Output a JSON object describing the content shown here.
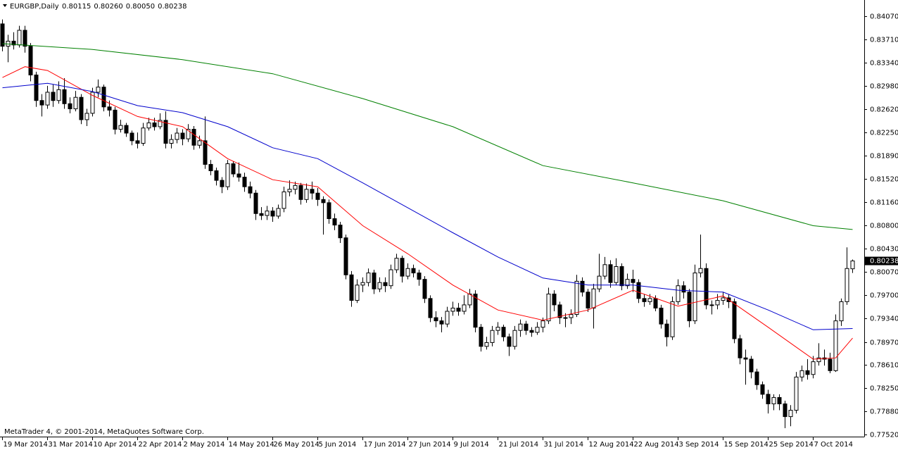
{
  "chart_data": {
    "type": "candlestick",
    "symbol": "EURGBP,Daily",
    "header_values": [
      "0.80115",
      "0.80260",
      "0.80050",
      "0.80238"
    ],
    "price_label": "0.80238",
    "footer": "MetaTrader 4, © 2001-2014, MetaQuotes Software Corp.",
    "bull_color": "#ffffff",
    "bear_color": "#000000",
    "outline_color": "#000000",
    "ylim": [
      0.77487,
      0.84291
    ],
    "yticks": [
      {
        "value": 0.8407,
        "label": "0.84070"
      },
      {
        "value": 0.8371,
        "label": "0.83710"
      },
      {
        "value": 0.8334,
        "label": "0.83340"
      },
      {
        "value": 0.8298,
        "label": "0.82980"
      },
      {
        "value": 0.8262,
        "label": "0.82620"
      },
      {
        "value": 0.8225,
        "label": "0.82250"
      },
      {
        "value": 0.8189,
        "label": "0.81890"
      },
      {
        "value": 0.8152,
        "label": "0.81520"
      },
      {
        "value": 0.8116,
        "label": "0.81160"
      },
      {
        "value": 0.808,
        "label": "0.80800"
      },
      {
        "value": 0.8043,
        "label": "0.80430"
      },
      {
        "value": 0.8007,
        "label": "0.80070"
      },
      {
        "value": 0.797,
        "label": "0.79700"
      },
      {
        "value": 0.7934,
        "label": "0.79340"
      },
      {
        "value": 0.7897,
        "label": "0.78970"
      },
      {
        "value": 0.7861,
        "label": "0.78610"
      },
      {
        "value": 0.7825,
        "label": "0.78250"
      },
      {
        "value": 0.7788,
        "label": "0.77880"
      },
      {
        "value": 0.7752,
        "label": "0.77520"
      }
    ],
    "categories": [
      "19 Mar 2014",
      null,
      null,
      null,
      null,
      null,
      null,
      null,
      "31 Mar 2014",
      null,
      null,
      null,
      null,
      null,
      null,
      null,
      "10 Apr 2014",
      null,
      null,
      null,
      null,
      null,
      null,
      null,
      "22 Apr 2014",
      null,
      null,
      null,
      null,
      null,
      null,
      null,
      "2 May 2014",
      null,
      null,
      null,
      null,
      null,
      null,
      null,
      "14 May 2014",
      null,
      null,
      null,
      null,
      null,
      null,
      null,
      "26 May 2014",
      null,
      null,
      null,
      null,
      null,
      null,
      null,
      "5 Jun 2014",
      null,
      null,
      null,
      null,
      null,
      null,
      null,
      "17 Jun 2014",
      null,
      null,
      null,
      null,
      null,
      null,
      null,
      "27 Jun 2014",
      null,
      null,
      null,
      null,
      null,
      null,
      null,
      "9 Jul 2014",
      null,
      null,
      null,
      null,
      null,
      null,
      null,
      "21 Jul 2014",
      null,
      null,
      null,
      null,
      null,
      null,
      null,
      "31 Jul 2014",
      null,
      null,
      null,
      null,
      null,
      null,
      null,
      "12 Aug 2014",
      null,
      null,
      null,
      null,
      null,
      null,
      null,
      "22 Aug 2014",
      null,
      null,
      null,
      null,
      null,
      null,
      null,
      "3 Sep 2014",
      null,
      null,
      null,
      null,
      null,
      null,
      null,
      "15 Sep 2014",
      null,
      null,
      null,
      null,
      null,
      null,
      null,
      "25 Sep 2014",
      null,
      null,
      null,
      null,
      null,
      null,
      null,
      "7 Oct 2014",
      null,
      null,
      null,
      null,
      null,
      null,
      null
    ],
    "ohlc": [
      [
        0.8395,
        0.8402,
        0.8352,
        0.836
      ],
      [
        0.836,
        0.8378,
        0.8335,
        0.8368
      ],
      [
        0.8368,
        0.8382,
        0.8355,
        0.8362
      ],
      [
        0.8362,
        0.8392,
        0.8358,
        0.8385
      ],
      [
        0.8385,
        0.8392,
        0.835,
        0.836
      ],
      [
        0.836,
        0.8365,
        0.8305,
        0.8315
      ],
      [
        0.8315,
        0.832,
        0.8265,
        0.8275
      ],
      [
        0.8275,
        0.8285,
        0.825,
        0.8268
      ],
      [
        0.8268,
        0.8298,
        0.8262,
        0.8288
      ],
      [
        0.8288,
        0.83,
        0.8265,
        0.8275
      ],
      [
        0.8275,
        0.8305,
        0.827,
        0.8292
      ],
      [
        0.8292,
        0.831,
        0.8262,
        0.827
      ],
      [
        0.827,
        0.828,
        0.8255,
        0.8262
      ],
      [
        0.8262,
        0.829,
        0.8258,
        0.828
      ],
      [
        0.828,
        0.8285,
        0.8238,
        0.8245
      ],
      [
        0.8245,
        0.8262,
        0.8235,
        0.8255
      ],
      [
        0.8255,
        0.8295,
        0.825,
        0.8288
      ],
      [
        0.8288,
        0.8308,
        0.828,
        0.8296
      ],
      [
        0.8296,
        0.83,
        0.8258,
        0.8265
      ],
      [
        0.8265,
        0.8275,
        0.825,
        0.826
      ],
      [
        0.826,
        0.8265,
        0.8222,
        0.823
      ],
      [
        0.823,
        0.8245,
        0.8225,
        0.8236
      ],
      [
        0.8236,
        0.824,
        0.8218,
        0.8224
      ],
      [
        0.8224,
        0.8228,
        0.8205,
        0.8212
      ],
      [
        0.8212,
        0.8225,
        0.82,
        0.8208
      ],
      [
        0.8208,
        0.824,
        0.8204,
        0.8232
      ],
      [
        0.8232,
        0.8248,
        0.8228,
        0.824
      ],
      [
        0.824,
        0.8248,
        0.8228,
        0.8234
      ],
      [
        0.8234,
        0.8255,
        0.823,
        0.8244
      ],
      [
        0.8244,
        0.8258,
        0.82,
        0.8208
      ],
      [
        0.8208,
        0.8222,
        0.82,
        0.8214
      ],
      [
        0.8214,
        0.8232,
        0.8208,
        0.8224
      ],
      [
        0.8224,
        0.823,
        0.8205,
        0.8215
      ],
      [
        0.8215,
        0.8238,
        0.821,
        0.823
      ],
      [
        0.823,
        0.8235,
        0.8198,
        0.8205
      ],
      [
        0.8205,
        0.822,
        0.82,
        0.8212
      ],
      [
        0.8212,
        0.825,
        0.8168,
        0.8175
      ],
      [
        0.8175,
        0.8182,
        0.8158,
        0.8165
      ],
      [
        0.8165,
        0.817,
        0.8142,
        0.815
      ],
      [
        0.815,
        0.8155,
        0.813,
        0.814
      ],
      [
        0.814,
        0.8182,
        0.8135,
        0.8176
      ],
      [
        0.8176,
        0.818,
        0.8155,
        0.816
      ],
      [
        0.816,
        0.8178,
        0.8148,
        0.8155
      ],
      [
        0.8155,
        0.8162,
        0.8132,
        0.814
      ],
      [
        0.814,
        0.8148,
        0.8122,
        0.813
      ],
      [
        0.813,
        0.8135,
        0.8088,
        0.8098
      ],
      [
        0.8098,
        0.8108,
        0.8088,
        0.8095
      ],
      [
        0.8095,
        0.811,
        0.8088,
        0.8102
      ],
      [
        0.8102,
        0.8108,
        0.8085,
        0.8094
      ],
      [
        0.8094,
        0.8112,
        0.809,
        0.8106
      ],
      [
        0.8106,
        0.814,
        0.81,
        0.8132
      ],
      [
        0.8132,
        0.815,
        0.8125,
        0.8136
      ],
      [
        0.8136,
        0.8148,
        0.8128,
        0.8142
      ],
      [
        0.8142,
        0.8146,
        0.8112,
        0.812
      ],
      [
        0.812,
        0.8145,
        0.8115,
        0.8136
      ],
      [
        0.8136,
        0.8148,
        0.812,
        0.813
      ],
      [
        0.813,
        0.8138,
        0.811,
        0.812
      ],
      [
        0.812,
        0.8125,
        0.8065,
        0.8115
      ],
      [
        0.8115,
        0.812,
        0.8082,
        0.809
      ],
      [
        0.809,
        0.8098,
        0.8072,
        0.808
      ],
      [
        0.808,
        0.8085,
        0.8052,
        0.806
      ],
      [
        0.806,
        0.8065,
        0.7995,
        0.8002
      ],
      [
        0.8002,
        0.8008,
        0.7952,
        0.7962
      ],
      [
        0.7962,
        0.7995,
        0.7958,
        0.7986
      ],
      [
        0.7986,
        0.7998,
        0.7975,
        0.799
      ],
      [
        0.799,
        0.8012,
        0.7984,
        0.8005
      ],
      [
        0.8005,
        0.801,
        0.7972,
        0.798
      ],
      [
        0.798,
        0.7998,
        0.7975,
        0.799
      ],
      [
        0.799,
        0.7998,
        0.7975,
        0.7985
      ],
      [
        0.7985,
        0.8018,
        0.798,
        0.801
      ],
      [
        0.801,
        0.8035,
        0.8005,
        0.8028
      ],
      [
        0.8028,
        0.8032,
        0.799,
        0.8
      ],
      [
        0.8,
        0.802,
        0.7995,
        0.8012
      ],
      [
        0.8012,
        0.8018,
        0.7998,
        0.8005
      ],
      [
        0.8005,
        0.801,
        0.7985,
        0.7995
      ],
      [
        0.7995,
        0.8,
        0.7958,
        0.7965
      ],
      [
        0.7965,
        0.797,
        0.7928,
        0.7935
      ],
      [
        0.7935,
        0.7945,
        0.792,
        0.793
      ],
      [
        0.793,
        0.7936,
        0.7912,
        0.7925
      ],
      [
        0.7925,
        0.7952,
        0.792,
        0.7945
      ],
      [
        0.7945,
        0.796,
        0.7938,
        0.795
      ],
      [
        0.795,
        0.7958,
        0.7938,
        0.7945
      ],
      [
        0.7945,
        0.797,
        0.794,
        0.7955
      ],
      [
        0.7955,
        0.798,
        0.795,
        0.7972
      ],
      [
        0.7972,
        0.7978,
        0.7912,
        0.792
      ],
      [
        0.792,
        0.7925,
        0.7882,
        0.789
      ],
      [
        0.789,
        0.7905,
        0.7885,
        0.7896
      ],
      [
        0.7896,
        0.7922,
        0.789,
        0.7915
      ],
      [
        0.7915,
        0.7928,
        0.7908,
        0.792
      ],
      [
        0.792,
        0.7924,
        0.7898,
        0.7905
      ],
      [
        0.7905,
        0.791,
        0.7875,
        0.789
      ],
      [
        0.789,
        0.7922,
        0.7885,
        0.7915
      ],
      [
        0.7915,
        0.7932,
        0.7905,
        0.7925
      ],
      [
        0.7925,
        0.793,
        0.7908,
        0.7915
      ],
      [
        0.7915,
        0.792,
        0.7905,
        0.7912
      ],
      [
        0.7912,
        0.7928,
        0.7908,
        0.792
      ],
      [
        0.792,
        0.7935,
        0.7912,
        0.793
      ],
      [
        0.793,
        0.7982,
        0.7925,
        0.7972
      ],
      [
        0.7972,
        0.7978,
        0.7945,
        0.7955
      ],
      [
        0.7955,
        0.796,
        0.7925,
        0.7935
      ],
      [
        0.7935,
        0.7942,
        0.792,
        0.7935
      ],
      [
        0.7935,
        0.7948,
        0.7925,
        0.794
      ],
      [
        0.794,
        0.8002,
        0.7936,
        0.7992
      ],
      [
        0.7992,
        0.7998,
        0.7968,
        0.7975
      ],
      [
        0.7975,
        0.798,
        0.7944,
        0.795
      ],
      [
        0.795,
        0.7988,
        0.7918,
        0.798
      ],
      [
        0.798,
        0.8035,
        0.7975,
        0.8
      ],
      [
        0.8,
        0.803,
        0.7995,
        0.8018
      ],
      [
        0.8018,
        0.8025,
        0.7982,
        0.799
      ],
      [
        0.799,
        0.8028,
        0.7986,
        0.8015
      ],
      [
        0.8015,
        0.802,
        0.7978,
        0.7985
      ],
      [
        0.7985,
        0.8004,
        0.798,
        0.7995
      ],
      [
        0.7995,
        0.801,
        0.7975,
        0.799
      ],
      [
        0.799,
        0.7995,
        0.7958,
        0.7965
      ],
      [
        0.7965,
        0.7972,
        0.7952,
        0.796
      ],
      [
        0.796,
        0.7972,
        0.7955,
        0.7965
      ],
      [
        0.7965,
        0.797,
        0.7945,
        0.795
      ],
      [
        0.795,
        0.7955,
        0.7918,
        0.7925
      ],
      [
        0.7925,
        0.7932,
        0.789,
        0.7905
      ],
      [
        0.7905,
        0.7968,
        0.79,
        0.796
      ],
      [
        0.796,
        0.7995,
        0.7955,
        0.7985
      ],
      [
        0.7985,
        0.7992,
        0.7965,
        0.7975
      ],
      [
        0.7975,
        0.798,
        0.792,
        0.793
      ],
      [
        0.793,
        0.8018,
        0.7925,
        0.8005
      ],
      [
        0.8005,
        0.8065,
        0.7998,
        0.8012
      ],
      [
        0.8012,
        0.802,
        0.7948,
        0.7955
      ],
      [
        0.7955,
        0.7962,
        0.794,
        0.7955
      ],
      [
        0.7955,
        0.7972,
        0.7948,
        0.7962
      ],
      [
        0.7962,
        0.7975,
        0.7955,
        0.7966
      ],
      [
        0.7966,
        0.7972,
        0.795,
        0.796
      ],
      [
        0.796,
        0.7965,
        0.7895,
        0.7902
      ],
      [
        0.7902,
        0.7908,
        0.7862,
        0.7872
      ],
      [
        0.7872,
        0.7885,
        0.783,
        0.787
      ],
      [
        0.787,
        0.7875,
        0.784,
        0.785
      ],
      [
        0.785,
        0.7855,
        0.7822,
        0.783
      ],
      [
        0.783,
        0.7835,
        0.7808,
        0.7815
      ],
      [
        0.7815,
        0.7822,
        0.7785,
        0.78
      ],
      [
        0.78,
        0.7815,
        0.779,
        0.781
      ],
      [
        0.781,
        0.7815,
        0.779,
        0.78
      ],
      [
        0.78,
        0.7805,
        0.7762,
        0.778
      ],
      [
        0.778,
        0.7798,
        0.7765,
        0.779
      ],
      [
        0.779,
        0.785,
        0.7785,
        0.7842
      ],
      [
        0.7842,
        0.786,
        0.7835,
        0.7852
      ],
      [
        0.7852,
        0.787,
        0.7838,
        0.7846
      ],
      [
        0.7846,
        0.7875,
        0.784,
        0.7866
      ],
      [
        0.7866,
        0.7895,
        0.786,
        0.7872
      ],
      [
        0.7872,
        0.7885,
        0.786,
        0.787
      ],
      [
        0.787,
        0.788,
        0.7848,
        0.7852
      ],
      [
        0.7852,
        0.794,
        0.785,
        0.793
      ],
      [
        0.793,
        0.7965,
        0.7922,
        0.796
      ],
      [
        0.796,
        0.8045,
        0.7955,
        0.8012
      ],
      [
        0.80115,
        0.8026,
        0.8005,
        0.80238
      ]
    ],
    "moving_averages": [
      {
        "color": "#ff0000",
        "x": [
          0,
          4,
          8,
          16,
          24,
          32,
          40,
          48,
          56,
          64,
          72,
          80,
          88,
          96,
          104,
          112,
          120,
          128,
          136,
          144,
          148,
          151
        ],
        "values": [
          0.8311,
          0.8328,
          0.8322,
          0.8283,
          0.825,
          0.8234,
          0.8184,
          0.8151,
          0.814,
          0.8079,
          0.8035,
          0.7986,
          0.7947,
          0.7931,
          0.7947,
          0.7978,
          0.7953,
          0.7969,
          0.792,
          0.787,
          0.7872,
          0.7903
        ]
      },
      {
        "color": "#0000cc",
        "x": [
          0,
          8,
          16,
          24,
          32,
          40,
          48,
          56,
          64,
          72,
          80,
          88,
          96,
          104,
          112,
          120,
          128,
          136,
          144,
          151
        ],
        "values": [
          0.8295,
          0.8302,
          0.8289,
          0.8267,
          0.8256,
          0.8234,
          0.8201,
          0.8184,
          0.8146,
          0.8107,
          0.8068,
          0.803,
          0.7997,
          0.7986,
          0.7986,
          0.7978,
          0.7975,
          0.7947,
          0.7916,
          0.7918
        ]
      },
      {
        "color": "#008000",
        "x": [
          0,
          16,
          32,
          48,
          64,
          80,
          96,
          112,
          128,
          144,
          151
        ],
        "values": [
          0.8364,
          0.8355,
          0.8339,
          0.8317,
          0.8278,
          0.8234,
          0.8173,
          0.8146,
          0.8118,
          0.8079,
          0.8073
        ]
      }
    ]
  }
}
